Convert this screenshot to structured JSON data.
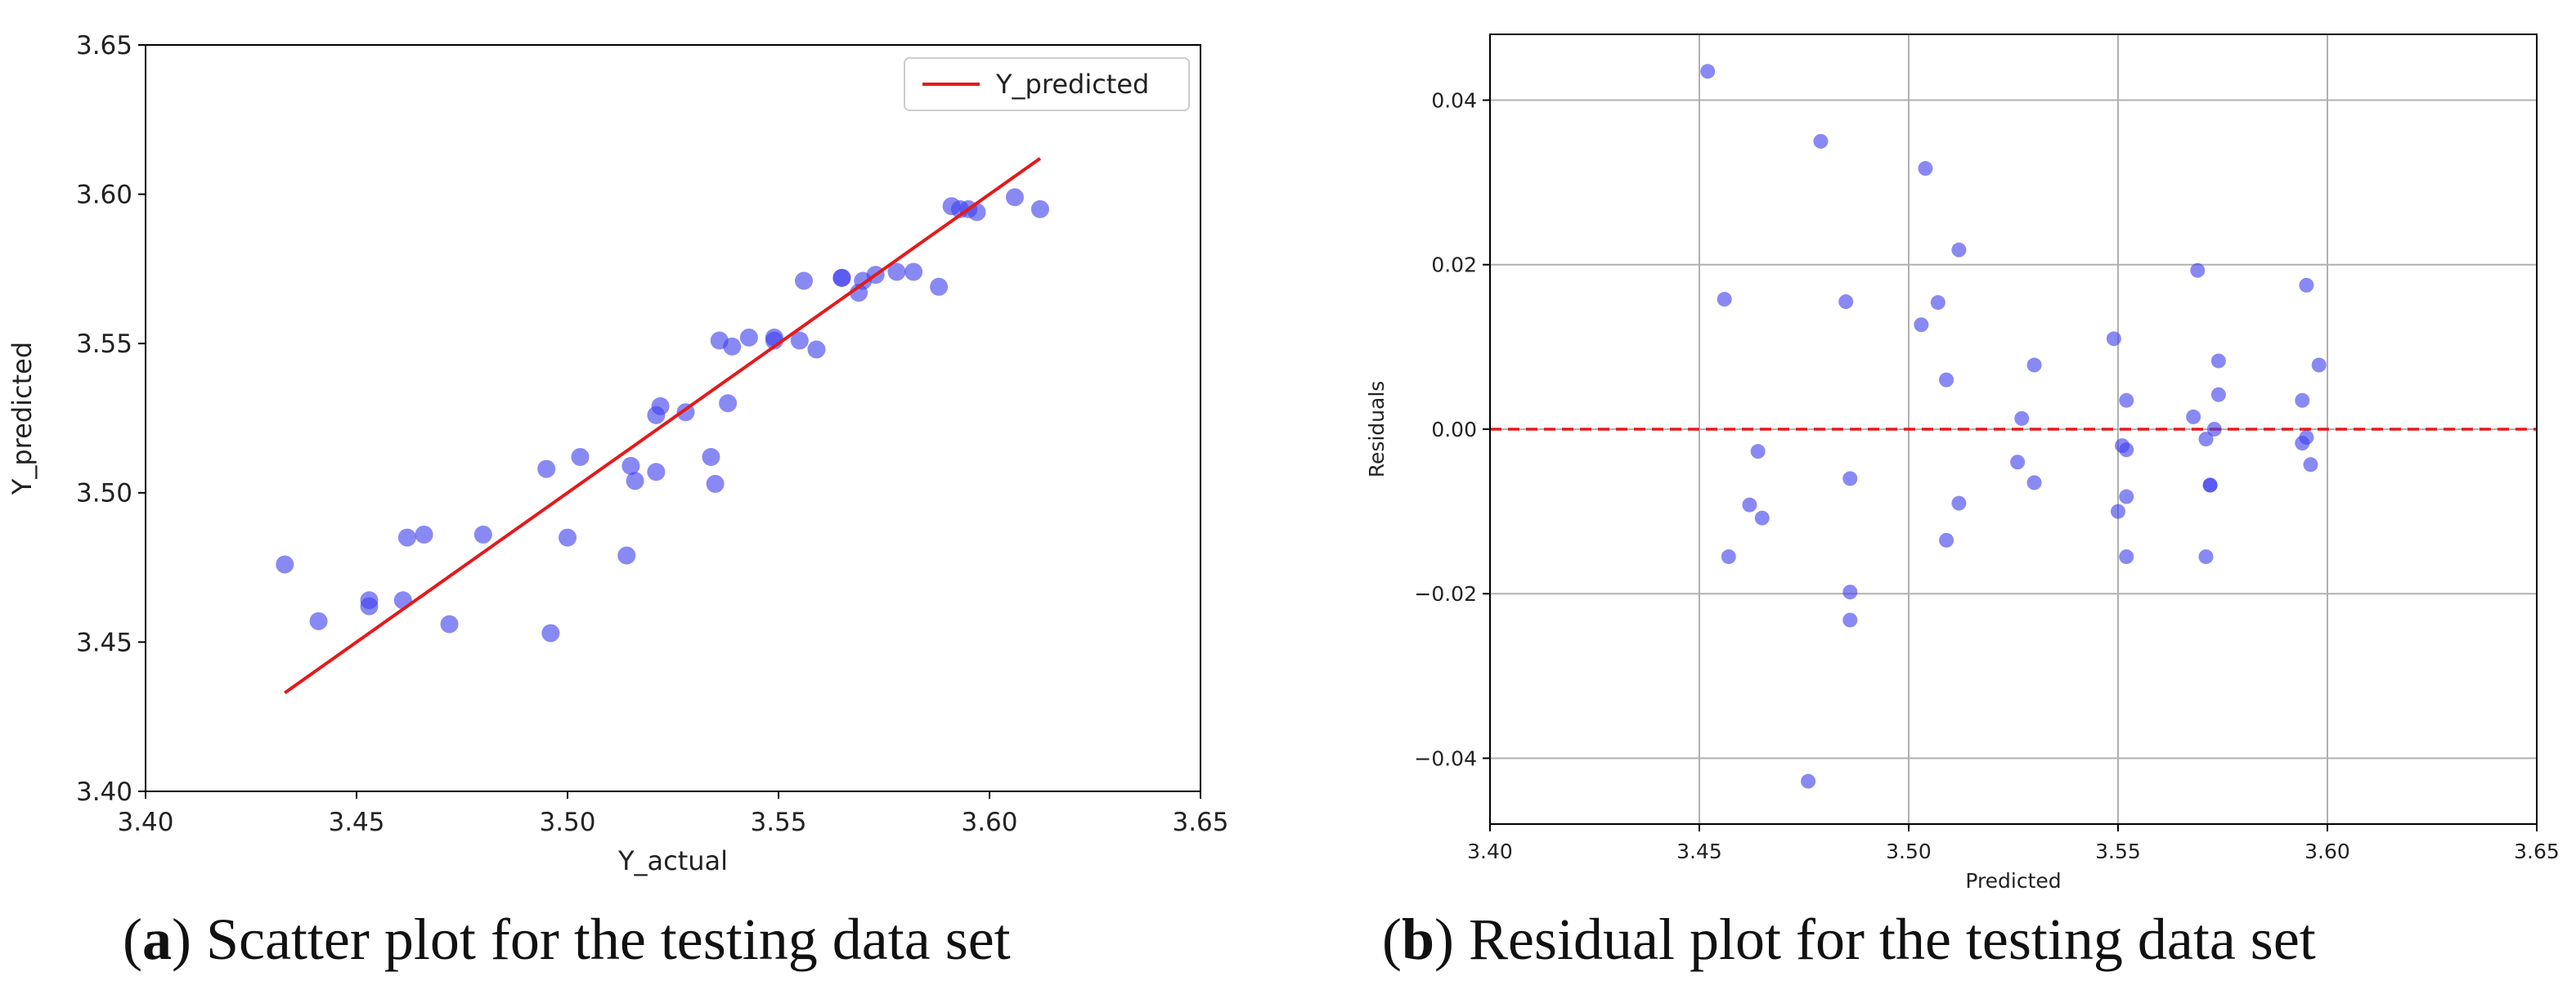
{
  "figure": {
    "captions": [
      {
        "letter": "a",
        "text": "Scatter plot for the testing data set"
      },
      {
        "letter": "b",
        "text": "Residual plot for the testing data set"
      }
    ]
  },
  "colors": {
    "points": "#4040ee",
    "fit_line": "#e41a1c",
    "zero_line": "#e41a1c",
    "grid": "#b0b0b0",
    "axes": "#000000"
  },
  "chart_data": [
    {
      "id": "scatter",
      "type": "scatter",
      "title": "",
      "xlabel": "Y_actual",
      "ylabel": "Y_predicted",
      "xlim": [
        3.4,
        3.65
      ],
      "ylim": [
        3.4,
        3.65
      ],
      "xticks": [
        "3.40",
        "3.45",
        "3.50",
        "3.55",
        "3.60",
        "3.65"
      ],
      "yticks": [
        "3.40",
        "3.45",
        "3.50",
        "3.55",
        "3.60",
        "3.65"
      ],
      "grid": false,
      "legend": {
        "position": "top-right",
        "entries": [
          "Y_predicted"
        ]
      },
      "line": {
        "name": "Y_predicted",
        "x": [
          3.433,
          3.612
        ],
        "y": [
          3.433,
          3.612
        ]
      },
      "points": [
        [
          3.433,
          3.476
        ],
        [
          3.441,
          3.457
        ],
        [
          3.453,
          3.464
        ],
        [
          3.453,
          3.462
        ],
        [
          3.461,
          3.464
        ],
        [
          3.462,
          3.485
        ],
        [
          3.466,
          3.486
        ],
        [
          3.472,
          3.456
        ],
        [
          3.48,
          3.486
        ],
        [
          3.495,
          3.508
        ],
        [
          3.496,
          3.453
        ],
        [
          3.5,
          3.485
        ],
        [
          3.503,
          3.512
        ],
        [
          3.514,
          3.479
        ],
        [
          3.515,
          3.509
        ],
        [
          3.516,
          3.504
        ],
        [
          3.521,
          3.507
        ],
        [
          3.521,
          3.526
        ],
        [
          3.522,
          3.529
        ],
        [
          3.528,
          3.527
        ],
        [
          3.534,
          3.512
        ],
        [
          3.535,
          3.503
        ],
        [
          3.536,
          3.551
        ],
        [
          3.538,
          3.53
        ],
        [
          3.539,
          3.549
        ],
        [
          3.543,
          3.552
        ],
        [
          3.549,
          3.551
        ],
        [
          3.549,
          3.552
        ],
        [
          3.555,
          3.551
        ],
        [
          3.556,
          3.571
        ],
        [
          3.559,
          3.548
        ],
        [
          3.565,
          3.572
        ],
        [
          3.565,
          3.572
        ],
        [
          3.569,
          3.567
        ],
        [
          3.57,
          3.571
        ],
        [
          3.573,
          3.573
        ],
        [
          3.578,
          3.574
        ],
        [
          3.582,
          3.574
        ],
        [
          3.588,
          3.569
        ],
        [
          3.591,
          3.596
        ],
        [
          3.593,
          3.595
        ],
        [
          3.595,
          3.595
        ],
        [
          3.597,
          3.594
        ],
        [
          3.606,
          3.599
        ],
        [
          3.612,
          3.595
        ]
      ]
    },
    {
      "id": "residuals",
      "type": "scatter",
      "title": "",
      "xlabel": "Predicted",
      "ylabel": "Residuals",
      "xlim": [
        3.4,
        3.65
      ],
      "ylim": [
        -0.048,
        0.048
      ],
      "xticks": [
        "3.40",
        "3.45",
        "3.50",
        "3.55",
        "3.60",
        "3.65"
      ],
      "yticks": [
        {
          "v": -0.04,
          "label": "−0.04"
        },
        {
          "v": -0.02,
          "label": "−0.02"
        },
        {
          "v": 0.0,
          "label": "0.00"
        },
        {
          "v": 0.02,
          "label": "0.02"
        },
        {
          "v": 0.04,
          "label": "0.04"
        }
      ],
      "grid": true,
      "reference_line": {
        "y": 0.0,
        "style": "dashed"
      },
      "points": [
        [
          3.452,
          0.0435
        ],
        [
          3.456,
          0.0158
        ],
        [
          3.457,
          -0.0155
        ],
        [
          3.462,
          -0.0092
        ],
        [
          3.464,
          -0.0027
        ],
        [
          3.465,
          -0.0108
        ],
        [
          3.476,
          -0.0428
        ],
        [
          3.479,
          0.035
        ],
        [
          3.485,
          0.0155
        ],
        [
          3.486,
          -0.006
        ],
        [
          3.486,
          -0.0198
        ],
        [
          3.486,
          -0.0232
        ],
        [
          3.503,
          0.0127
        ],
        [
          3.504,
          0.0317
        ],
        [
          3.507,
          0.0154
        ],
        [
          3.509,
          0.006
        ],
        [
          3.509,
          -0.0135
        ],
        [
          3.512,
          0.0218
        ],
        [
          3.512,
          -0.009
        ],
        [
          3.526,
          -0.004
        ],
        [
          3.527,
          0.0013
        ],
        [
          3.53,
          0.0078
        ],
        [
          3.53,
          -0.0065
        ],
        [
          3.549,
          0.011
        ],
        [
          3.55,
          -0.01
        ],
        [
          3.551,
          -0.002
        ],
        [
          3.552,
          0.0035
        ],
        [
          3.552,
          -0.0025
        ],
        [
          3.552,
          -0.0082
        ],
        [
          3.552,
          -0.0155
        ],
        [
          3.568,
          0.0015
        ],
        [
          3.569,
          0.0193
        ],
        [
          3.571,
          -0.0012
        ],
        [
          3.571,
          -0.0155
        ],
        [
          3.572,
          -0.0068
        ],
        [
          3.572,
          -0.0068
        ],
        [
          3.573,
          0.0
        ],
        [
          3.574,
          0.0083
        ],
        [
          3.574,
          0.0042
        ],
        [
          3.594,
          0.0035
        ],
        [
          3.594,
          -0.0017
        ],
        [
          3.595,
          0.0175
        ],
        [
          3.595,
          -0.001
        ],
        [
          3.596,
          -0.0043
        ],
        [
          3.598,
          0.0078
        ]
      ]
    }
  ]
}
